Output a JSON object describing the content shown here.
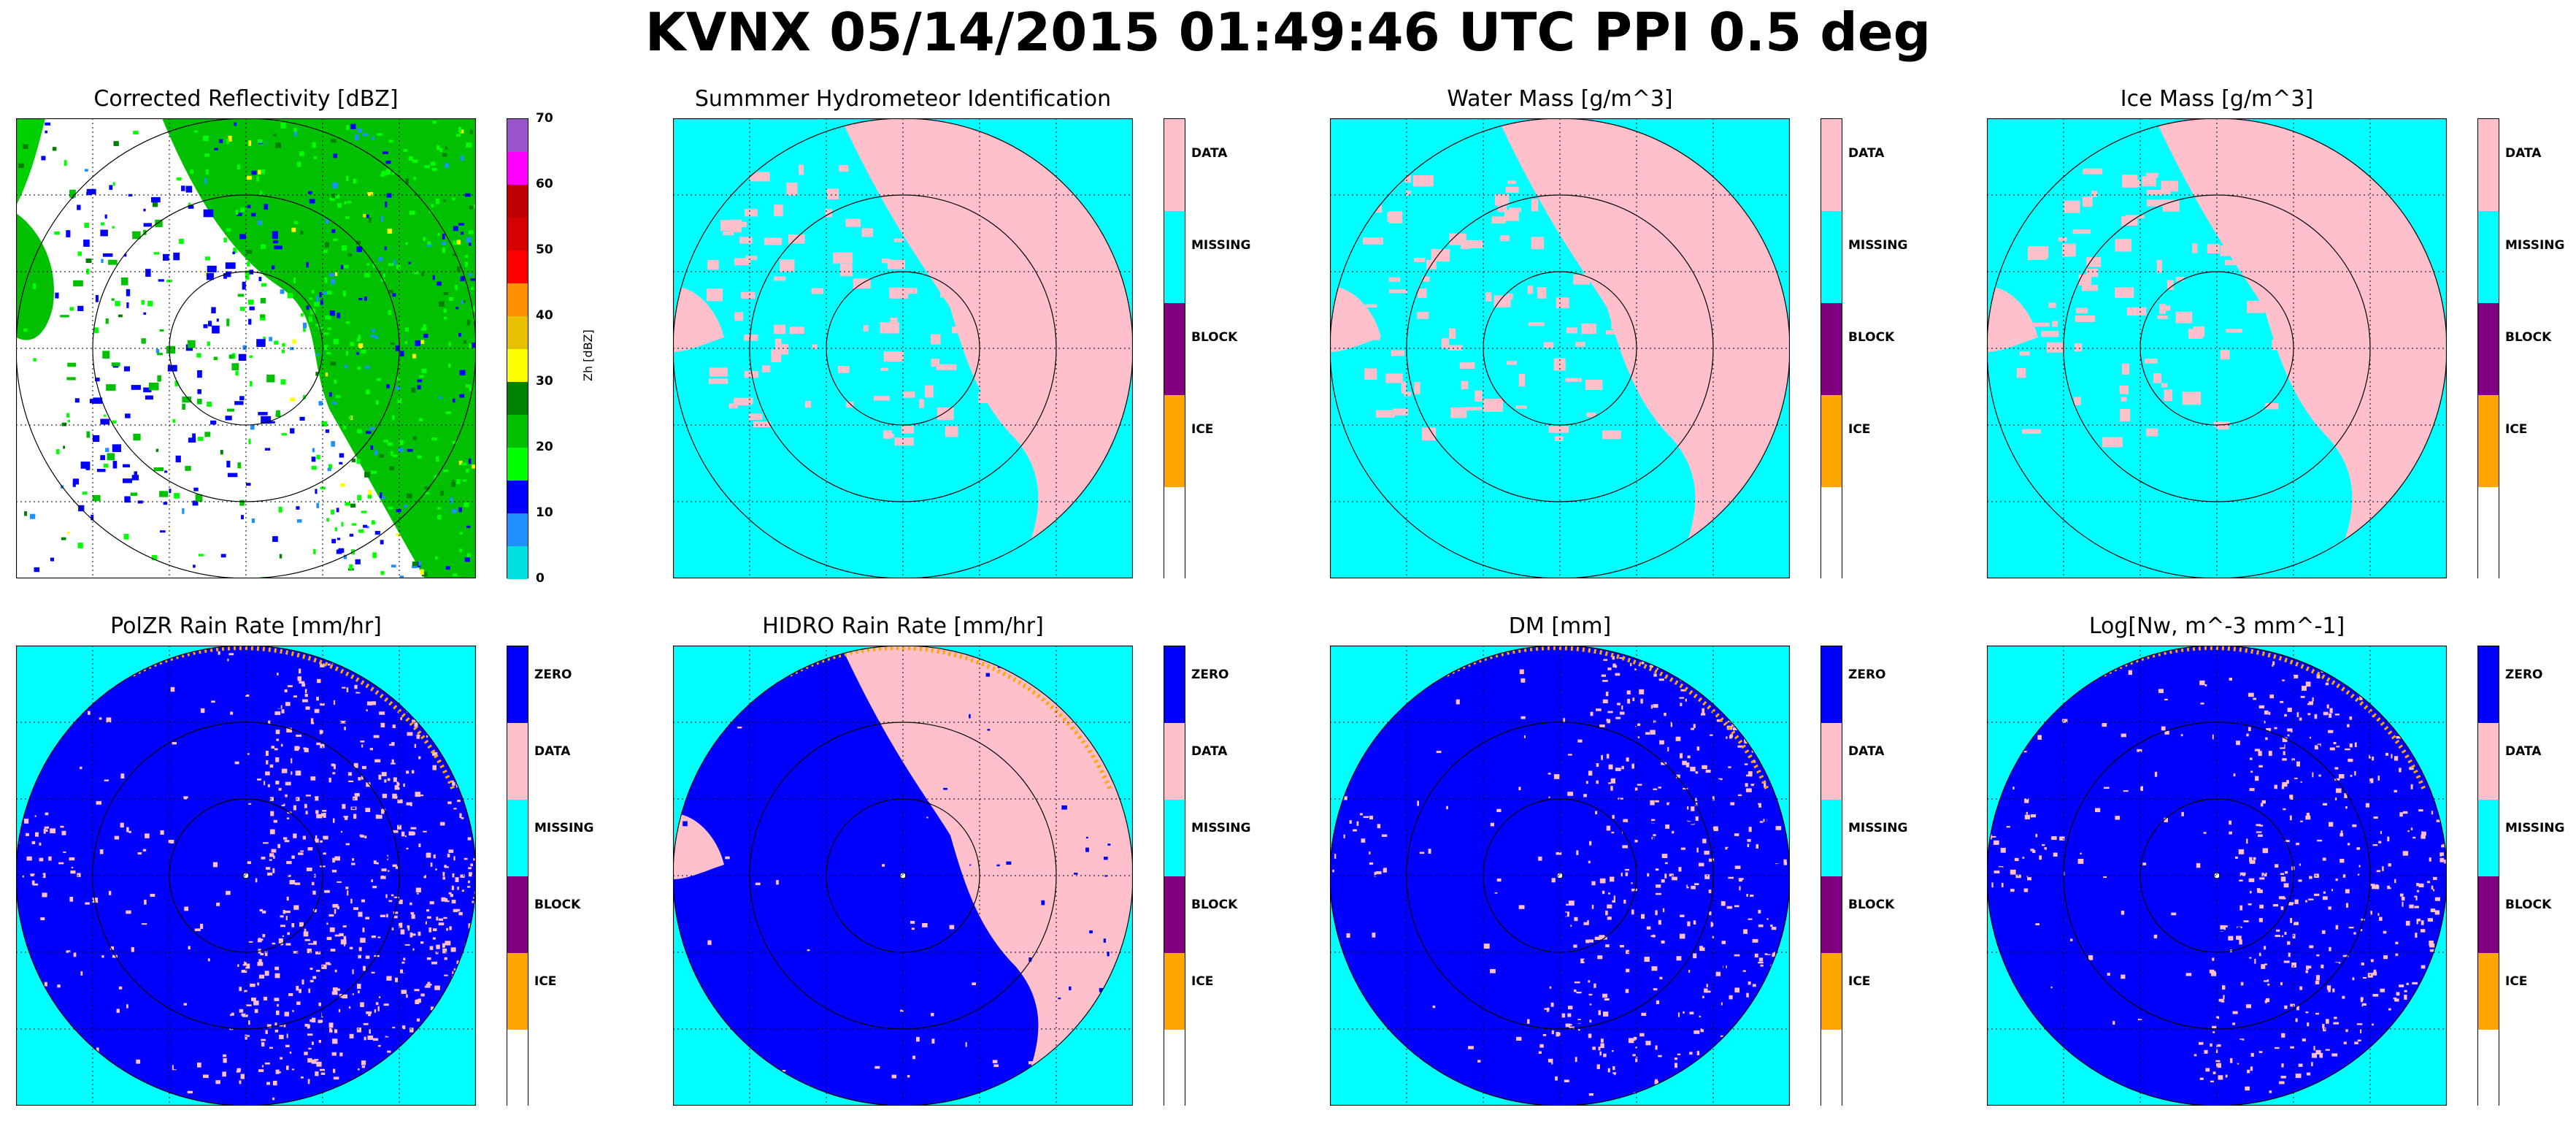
{
  "suptitle": "KVNX 05/14/2015 01:49:46 UTC PPI 0.5 deg",
  "colors": {
    "background_fill": "#00ffff",
    "data": "#ffc0cb",
    "zero": "#0000ff",
    "missing": "#00ffff",
    "block": "#800080",
    "ice": "#ffa500",
    "blank": "#ffffff",
    "ring": "#000000",
    "grid": "#000000"
  },
  "chart_data": [
    {
      "type": "heatmap",
      "title": "Corrected Reflectivity [dBZ]",
      "colorbar_type": "continuous",
      "colorbar_label": "Zh [dBZ]",
      "colorbar_range": [
        0,
        70
      ],
      "colorbar_ticks": [
        "0",
        "10",
        "20",
        "30",
        "40",
        "50",
        "60",
        "70"
      ],
      "colorbar_colors": [
        "#00e0e0",
        "#1e90ff",
        "#0000ff",
        "#00ff00",
        "#00c000",
        "#008000",
        "#ffff00",
        "#e7c000",
        "#ff9000",
        "#ff0000",
        "#d60000",
        "#c00000",
        "#ff00ff",
        "#9955c9"
      ],
      "range_rings": 3,
      "grid": true
    },
    {
      "type": "heatmap",
      "title": "Summmer Hydrometeor Identification",
      "colorbar_type": "categorical",
      "categories": [
        "DATA",
        "MISSING",
        "BLOCK",
        "ICE",
        ""
      ],
      "category_colors": [
        "#ffc0cb",
        "#00ffff",
        "#800080",
        "#ffa500",
        "#ffffff"
      ],
      "range_rings": 3,
      "grid": true
    },
    {
      "type": "heatmap",
      "title": "Water Mass [g/m^3]",
      "colorbar_type": "categorical",
      "categories": [
        "DATA",
        "MISSING",
        "BLOCK",
        "ICE",
        ""
      ],
      "category_colors": [
        "#ffc0cb",
        "#00ffff",
        "#800080",
        "#ffa500",
        "#ffffff"
      ],
      "range_rings": 3,
      "grid": true
    },
    {
      "type": "heatmap",
      "title": "Ice Mass [g/m^3]",
      "colorbar_type": "categorical",
      "categories": [
        "DATA",
        "MISSING",
        "BLOCK",
        "ICE",
        ""
      ],
      "category_colors": [
        "#ffc0cb",
        "#00ffff",
        "#800080",
        "#ffa500",
        "#ffffff"
      ],
      "range_rings": 3,
      "grid": true
    },
    {
      "type": "heatmap",
      "title": "PolZR Rain Rate [mm/hr]",
      "colorbar_type": "categorical",
      "categories": [
        "ZERO",
        "DATA",
        "MISSING",
        "BLOCK",
        "ICE",
        ""
      ],
      "category_colors": [
        "#0000ff",
        "#ffc0cb",
        "#00ffff",
        "#800080",
        "#ffa500",
        "#ffffff"
      ],
      "range_rings": 3,
      "grid": true
    },
    {
      "type": "heatmap",
      "title": "HIDRO Rain Rate [mm/hr]",
      "colorbar_type": "categorical",
      "categories": [
        "ZERO",
        "DATA",
        "MISSING",
        "BLOCK",
        "ICE",
        ""
      ],
      "category_colors": [
        "#0000ff",
        "#ffc0cb",
        "#00ffff",
        "#800080",
        "#ffa500",
        "#ffffff"
      ],
      "range_rings": 3,
      "grid": true
    },
    {
      "type": "heatmap",
      "title": "DM [mm]",
      "colorbar_type": "categorical",
      "categories": [
        "ZERO",
        "DATA",
        "MISSING",
        "BLOCK",
        "ICE",
        ""
      ],
      "category_colors": [
        "#0000ff",
        "#ffc0cb",
        "#00ffff",
        "#800080",
        "#ffa500",
        "#ffffff"
      ],
      "range_rings": 3,
      "grid": true
    },
    {
      "type": "heatmap",
      "title": "Log[Nw, m^-3 mm^-1]",
      "colorbar_type": "categorical",
      "categories": [
        "ZERO",
        "DATA",
        "MISSING",
        "BLOCK",
        "ICE",
        ""
      ],
      "category_colors": [
        "#0000ff",
        "#ffc0cb",
        "#00ffff",
        "#800080",
        "#ffa500",
        "#ffffff"
      ],
      "range_rings": 3,
      "grid": true
    }
  ]
}
